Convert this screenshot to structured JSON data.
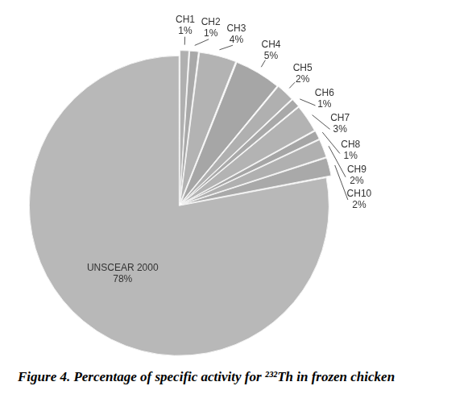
{
  "chart_data": {
    "type": "pie",
    "title": "Figure 4. Percentage of specific activity for ²³²Th in frozen chicken",
    "categories": [
      "CH1",
      "CH2",
      "CH3",
      "CH4",
      "CH5",
      "CH6",
      "CH7",
      "CH8",
      "CH9",
      "CH10",
      "UNSCEAR 2000"
    ],
    "values": [
      1,
      1,
      4,
      5,
      2,
      1,
      3,
      1,
      2,
      2,
      78
    ],
    "value_labels": [
      "1%",
      "1%",
      "4%",
      "5%",
      "2%",
      "1%",
      "3%",
      "1%",
      "2%",
      "2%",
      "78%"
    ],
    "colors": [
      "#b0b0b0",
      "#a9a9a9",
      "#b3b3b3",
      "#a6a6a6",
      "#b0b0b0",
      "#a9a9a9",
      "#b3b3b3",
      "#a6a6a6",
      "#b0b0b0",
      "#a9a9a9",
      "#b8b8b8"
    ],
    "data_labels": true
  }
}
